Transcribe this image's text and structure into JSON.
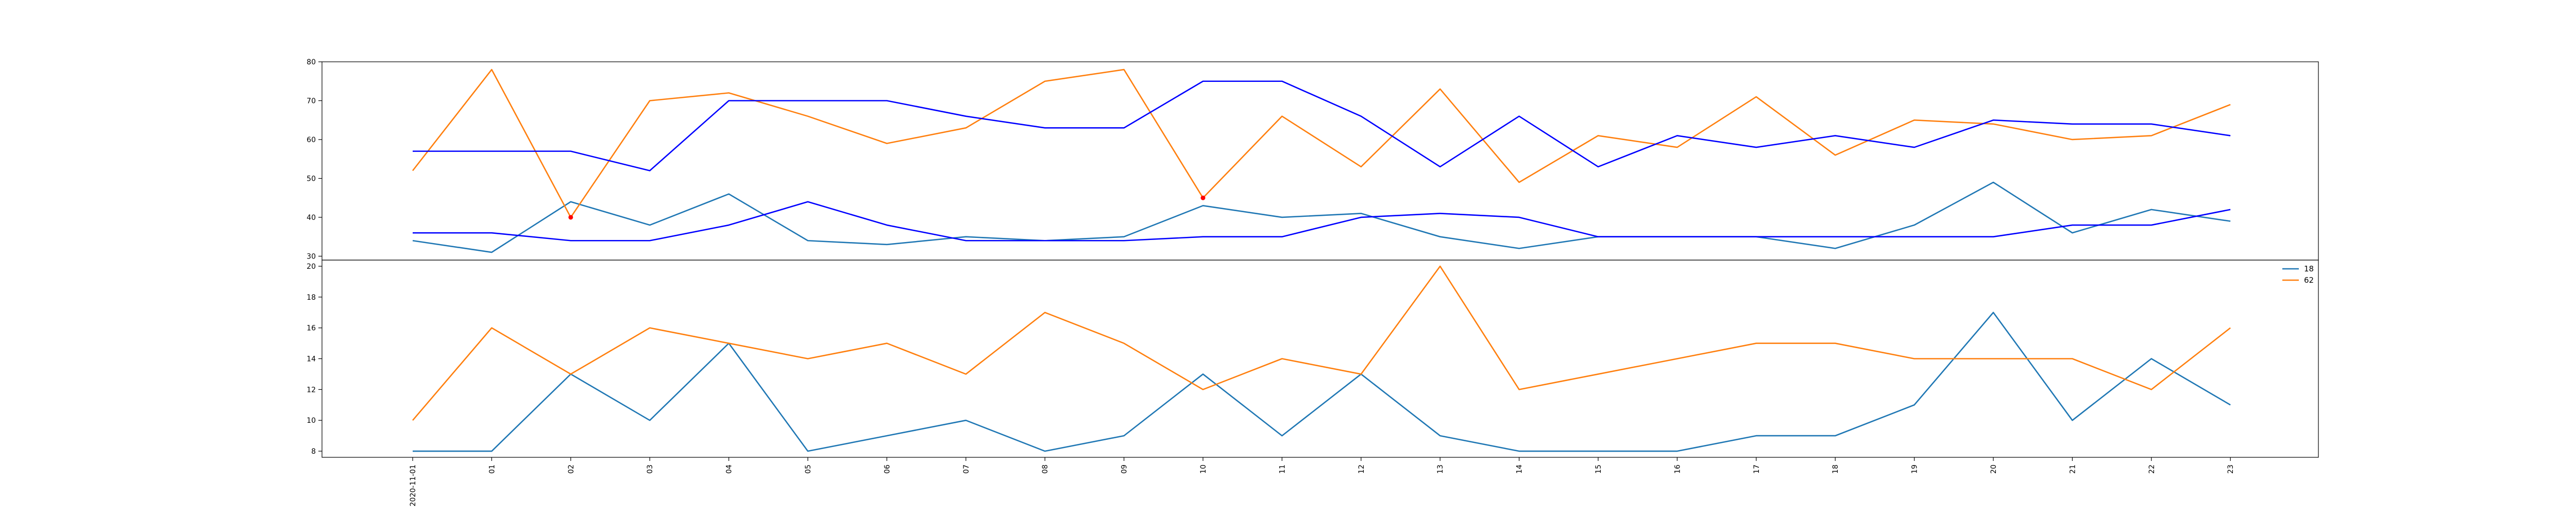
{
  "chart_data": [
    {
      "type": "line",
      "panel": "top",
      "x": [
        "2020-11-01",
        "01",
        "02",
        "03",
        "04",
        "05",
        "06",
        "07",
        "08",
        "09",
        "10",
        "11",
        "12",
        "13",
        "14",
        "15",
        "16",
        "17",
        "18",
        "19",
        "20",
        "21",
        "22",
        "23"
      ],
      "ylim": [
        29,
        80
      ],
      "yticks": [
        30,
        40,
        50,
        60,
        70,
        80
      ],
      "series": [
        {
          "color": "#1f77b4",
          "values": [
            34,
            31,
            44,
            38,
            46,
            34,
            33,
            35,
            34,
            35,
            43,
            40,
            41,
            35,
            32,
            35,
            35,
            35,
            32,
            38,
            49,
            36,
            42,
            39
          ]
        },
        {
          "color": "#ff7f0e",
          "values": [
            52,
            78,
            40,
            70,
            72,
            66,
            59,
            63,
            75,
            78,
            45,
            66,
            53,
            73,
            49,
            61,
            58,
            71,
            56,
            65,
            64,
            60,
            61,
            69
          ]
        },
        {
          "color": "#0000ff",
          "values": [
            57,
            57,
            57,
            52,
            70,
            70,
            70,
            66,
            63,
            63,
            75,
            75,
            66,
            53,
            66,
            53,
            61,
            58,
            61,
            58,
            65,
            64,
            64,
            61
          ]
        },
        {
          "color": "#0000ff",
          "values": [
            36,
            36,
            34,
            34,
            38,
            44,
            38,
            34,
            34,
            34,
            35,
            35,
            40,
            41,
            40,
            35,
            35,
            35,
            35,
            35,
            35,
            38,
            38,
            42
          ]
        }
      ],
      "markers": [
        {
          "x": "02",
          "y": 40,
          "color": "#ff0000"
        },
        {
          "x": "10",
          "y": 45,
          "color": "#ff0000"
        }
      ]
    },
    {
      "type": "line",
      "panel": "bottom",
      "x": [
        "2020-11-01",
        "01",
        "02",
        "03",
        "04",
        "05",
        "06",
        "07",
        "08",
        "09",
        "10",
        "11",
        "12",
        "13",
        "14",
        "15",
        "16",
        "17",
        "18",
        "19",
        "20",
        "21",
        "22",
        "23"
      ],
      "ylim": [
        7.6,
        20.4
      ],
      "yticks": [
        8,
        10,
        12,
        14,
        16,
        18,
        20
      ],
      "legend_position": "top-right",
      "series": [
        {
          "name": "18",
          "color": "#1f77b4",
          "values": [
            8,
            8,
            13,
            10,
            15,
            8,
            9,
            10,
            8,
            9,
            13,
            9,
            13,
            9,
            8,
            8,
            8,
            9,
            9,
            11,
            17,
            10,
            14,
            11
          ]
        },
        {
          "name": "62",
          "color": "#ff7f0e",
          "values": [
            10,
            16,
            13,
            16,
            15,
            14,
            15,
            13,
            17,
            15,
            12,
            14,
            13,
            20,
            12,
            13,
            14,
            15,
            15,
            14,
            14,
            14,
            12,
            16
          ]
        }
      ]
    }
  ]
}
